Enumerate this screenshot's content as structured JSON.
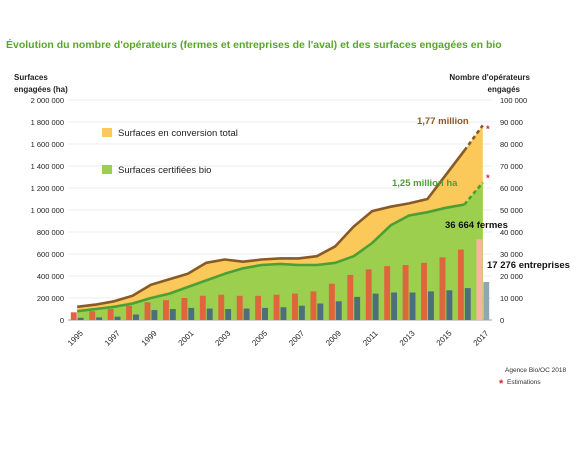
{
  "colors": {
    "title": "#5aa62a",
    "conversion_area": "#fbc95a",
    "certified_area": "#9ccf4e",
    "fermes_bar": "#e0653c",
    "entreprises_bar": "#4d6f7c",
    "estimate_fermes_bar": "#f4b6a2",
    "estimate_entreprises_bar": "#8ea7b0",
    "total_line": "#8a5a26",
    "certified_line": "#4aa036",
    "estimate_star": "#d9232d"
  },
  "chart_data": {
    "type": "area",
    "title": "Évolution du nombre d'opérateurs (fermes et entreprises de l'aval) et des surfaces engagées en bio",
    "ylabel_left": [
      "Surfaces",
      "engagées (ha)"
    ],
    "ylabel_right": [
      "Nombre d'opérateurs",
      "engagés"
    ],
    "ylim_left": [
      0,
      2000000
    ],
    "ylim_right": [
      0,
      100000
    ],
    "yticks_left": [
      "0",
      "200 000",
      "400 000",
      "600 000",
      "800 000",
      "1 000 000",
      "1 200 000",
      "1 400 000",
      "1 600 000",
      "1 800 000",
      "2 000 000"
    ],
    "yticks_right": [
      "0",
      "10 000",
      "20 000",
      "30 000",
      "40 000",
      "50 000",
      "60 000",
      "70 000",
      "80 000",
      "90 000",
      "100 000"
    ],
    "years": [
      1995,
      1996,
      1997,
      1998,
      1999,
      2000,
      2001,
      2002,
      2003,
      2004,
      2005,
      2006,
      2007,
      2008,
      2009,
      2010,
      2011,
      2012,
      2013,
      2014,
      2015,
      2016,
      2017
    ],
    "xtick_labels": [
      "1995",
      "1997",
      "1999",
      "2001",
      "2003",
      "2005",
      "2007",
      "2009",
      "2011",
      "2013",
      "2015",
      "2017"
    ],
    "series": [
      {
        "name": "Surfaces en conversion total",
        "type": "area",
        "axis": "left",
        "values": [
          120000,
          140000,
          170000,
          220000,
          320000,
          370000,
          420000,
          520000,
          550000,
          530000,
          550000,
          560000,
          560000,
          580000,
          670000,
          850000,
          990000,
          1030000,
          1060000,
          1100000,
          1320000,
          1540000,
          1770000
        ]
      },
      {
        "name": "Surfaces certifiées bio",
        "type": "area",
        "axis": "left",
        "values": [
          80000,
          100000,
          120000,
          150000,
          200000,
          240000,
          300000,
          360000,
          420000,
          470000,
          500000,
          510000,
          500000,
          500000,
          520000,
          580000,
          700000,
          860000,
          950000,
          980000,
          1020000,
          1050000,
          1250000
        ]
      },
      {
        "name": "Fermes",
        "type": "bar",
        "axis": "right",
        "values": [
          3500,
          4000,
          5000,
          6500,
          8000,
          9000,
          10000,
          11000,
          11500,
          11000,
          11000,
          11500,
          12000,
          13000,
          16500,
          20500,
          23000,
          24500,
          25000,
          26000,
          28500,
          32000,
          36664
        ]
      },
      {
        "name": "Entreprises",
        "type": "bar",
        "axis": "right",
        "values": [
          1000,
          1200,
          1500,
          2500,
          4500,
          5000,
          5500,
          5200,
          5000,
          5200,
          5500,
          5800,
          6500,
          7500,
          8500,
          10500,
          12000,
          12500,
          12500,
          13000,
          13500,
          14500,
          17276
        ]
      }
    ],
    "estimated_year": 2017,
    "legend": [
      {
        "label": "Surfaces en conversion total",
        "color": "#fbc95a"
      },
      {
        "label": "Surfaces certifiées bio",
        "color": "#9ccf4e"
      }
    ],
    "annotations": {
      "total_2017": "1,77 million",
      "certified_2017": "1,25 million ha",
      "fermes_2017": "36 664 fermes",
      "entreprises_2017": "17 276 entreprises",
      "star": "*"
    },
    "grid": true,
    "legend_position": "left"
  },
  "source": {
    "credit": "Agence Bio/OC 2018",
    "estimation_label": "Estimations",
    "star": "*"
  }
}
